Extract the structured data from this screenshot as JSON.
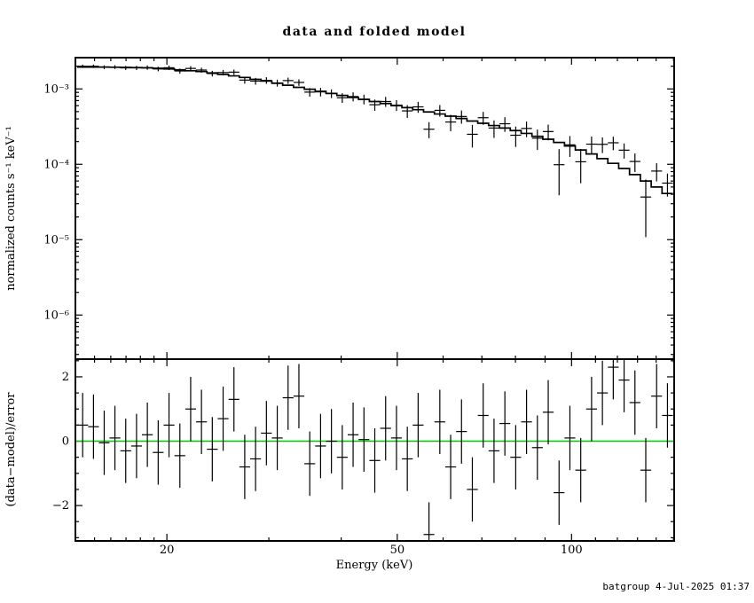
{
  "footer": "batgroup  4-Jul-2025 01:37",
  "chart_data": {
    "type": "scatter",
    "title": "data and folded model",
    "xlabel": "Energy (keV)",
    "xscale": "log",
    "xlim": [
      13.9,
      150.4
    ],
    "xticks_labeled": [
      20,
      50,
      100
    ],
    "xticks_minor": [
      15,
      16,
      17,
      18,
      19,
      30,
      40,
      60,
      70,
      80,
      90,
      110,
      120,
      130,
      140,
      150
    ],
    "energy_bin_edges_keV": [
      14.0,
      14.62,
      15.26,
      15.92,
      16.62,
      17.35,
      18.11,
      18.91,
      19.74,
      20.61,
      21.52,
      22.46,
      23.45,
      24.48,
      25.56,
      26.68,
      27.85,
      29.08,
      30.36,
      31.7,
      33.09,
      34.55,
      36.07,
      37.66,
      39.32,
      41.05,
      42.86,
      44.75,
      46.72,
      48.78,
      50.93,
      53.17,
      55.51,
      57.96,
      60.51,
      63.18,
      65.96,
      68.87,
      71.9,
      75.07,
      78.38,
      81.83,
      85.43,
      89.2,
      93.13,
      97.23,
      101.51,
      105.98,
      110.65,
      115.53,
      120.62,
      125.93,
      131.48,
      137.27,
      143.32,
      149.63
    ],
    "panels": [
      {
        "name": "spectrum",
        "ylabel": "normalized counts s⁻¹ keV⁻¹",
        "yscale": "log",
        "ylim": [
          2.6e-07,
          0.0026
        ],
        "ytick_values": [
          0.001,
          0.0001,
          1e-05,
          1e-06
        ],
        "ytick_labels": [
          "10⁻³",
          "10⁻⁴",
          "10⁻⁵",
          "10⁻⁶"
        ],
        "series": [
          {
            "name": "data",
            "style": "cross-error-bars",
            "color": "#000000",
            "rate": [
              0.002,
              0.002,
              0.00194,
              0.00195,
              0.0019,
              0.0019,
              0.00192,
              0.00184,
              0.00191,
              0.00173,
              0.00187,
              0.00178,
              0.0016,
              0.00165,
              0.00167,
              0.00131,
              0.00127,
              0.0013,
              0.0012,
              0.00129,
              0.00122,
              0.000907,
              0.000913,
              0.00087,
              0.000764,
              0.000792,
              0.00073,
              0.000617,
              0.000681,
              0.00061,
              0.000511,
              0.000578,
              0.000292,
              0.00052,
              0.000364,
              0.000431,
              0.00025,
              0.000415,
              0.000303,
              0.000345,
              0.000243,
              0.000299,
              0.000222,
              0.000272,
              9.88e-05,
              0.000181,
              0.000108,
              0.000185,
              0.000184,
              0.000193,
              0.000154,
              0.000109,
              3.68e-05,
              8.13e-05,
              5.63e-05
            ],
            "rate_err": [
              0.0001,
              0.000104,
              0.000108,
              0.000112,
              0.000116,
              0.00012,
              0.000124,
              0.000128,
              0.00013,
              0.000132,
              0.000133,
              0.000136,
              0.000136,
              0.000135,
              0.000135,
              0.000134,
              0.000131,
              0.00013,
              0.000127,
              0.000124,
              0.000121,
              0.000119,
              0.000117,
              0.000114,
              0.000112,
              0.000109,
              0.000107,
              0.000105,
              0.000103,
              0.0001,
              9.8e-05,
              9.6e-05,
              7e-05,
              9.1e-05,
              8.9e-05,
              8.6e-05,
              8.3e-05,
              8.1e-05,
              7.9e-05,
              7.6e-05,
              7.3e-05,
              7e-05,
              6.7e-05,
              6.4e-05,
              6e-05,
              5.6e-05,
              5.2e-05,
              4.8e-05,
              4.3e-05,
              3.9e-05,
              3.5e-05,
              3e-05,
              2.6e-05,
              2.2e-05,
              1.9e-05
            ]
          },
          {
            "name": "folded model",
            "style": "stepped-line",
            "color": "#000000",
            "model": [
              0.00195,
              0.00195,
              0.00195,
              0.00194,
              0.00193,
              0.00192,
              0.0019,
              0.00188,
              0.00184,
              0.00179,
              0.00174,
              0.0017,
              0.00163,
              0.00156,
              0.00149,
              0.00142,
              0.00134,
              0.00127,
              0.00119,
              0.00112,
              0.00105,
              0.00099,
              0.00093,
              0.00087,
              0.00082,
              0.00077,
              0.000725,
              0.00068,
              0.00064,
              0.0006,
              0.000565,
              0.00053,
              0.000495,
              0.000465,
              0.000435,
              0.000405,
              0.000375,
              0.00035,
              0.000327,
              0.000303,
              0.00028,
              0.000257,
              0.000235,
              0.000215,
              0.000195,
              0.000175,
              0.000155,
              0.000137,
              0.000119,
              0.000103,
              8.8e-05,
              7.3e-05,
              6e-05,
              5e-05,
              4.1e-05
            ]
          }
        ]
      },
      {
        "name": "residuals",
        "ylabel": "(data−model)/error",
        "yscale": "linear",
        "ylim": [
          -3.1,
          2.55
        ],
        "ytick_values": [
          2,
          0,
          -2
        ],
        "ytick_labels": [
          "2",
          "0",
          "−2"
        ],
        "zero_line": {
          "y": 0,
          "color": "#00c800"
        },
        "series": [
          {
            "name": "delchi",
            "style": "cross-error-bars",
            "color": "#000000",
            "err": 1,
            "values": [
              0.5,
              0.45,
              -0.05,
              0.1,
              -0.3,
              -0.15,
              0.2,
              -0.35,
              0.5,
              -0.45,
              1.0,
              0.6,
              -0.25,
              0.7,
              1.3,
              -0.8,
              -0.55,
              0.25,
              0.1,
              1.35,
              1.4,
              -0.7,
              -0.15,
              0.0,
              -0.5,
              0.2,
              0.05,
              -0.6,
              0.4,
              0.1,
              -0.55,
              0.5,
              -2.9,
              0.6,
              -0.8,
              0.3,
              -1.5,
              0.8,
              -0.3,
              0.55,
              -0.5,
              0.6,
              -0.2,
              0.9,
              -1.6,
              0.1,
              -0.9,
              1.0,
              1.5,
              2.3,
              1.9,
              1.2,
              -0.9,
              1.4,
              0.8
            ]
          }
        ]
      }
    ]
  }
}
